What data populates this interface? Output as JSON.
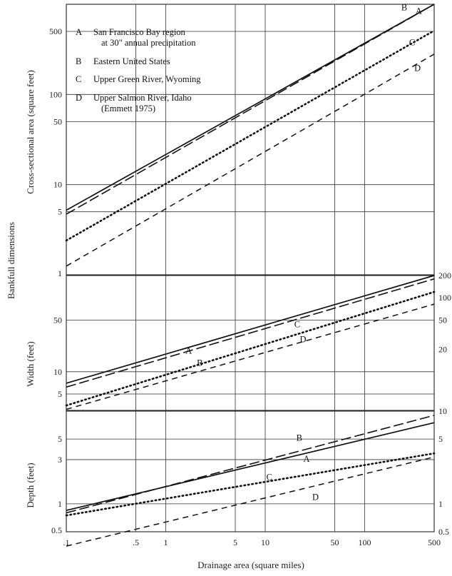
{
  "chart_data": {
    "type": "line",
    "x_scale": "log",
    "xlabel": "Drainage area (square miles)",
    "xlim": [
      0.1,
      500
    ],
    "x_ticks": [
      ".1",
      ".5",
      "1",
      "5",
      "10",
      "50",
      "100",
      "500"
    ],
    "shared_ylabel": "Bankfull dimensions",
    "legend": [
      {
        "key": "A",
        "lines": [
          "San Francisco Bay region",
          "at 30\" annual precipitation"
        ],
        "style": "solid"
      },
      {
        "key": "B",
        "lines": [
          "Eastern United States"
        ],
        "style": "long-dash"
      },
      {
        "key": "C",
        "lines": [
          "Upper Green River, Wyoming"
        ],
        "style": "dotted"
      },
      {
        "key": "D",
        "lines": [
          "Upper Salmon River, Idaho",
          "(Emmett 1975)"
        ],
        "style": "dashed"
      }
    ],
    "panels": [
      {
        "name": "area",
        "ylabel": "Cross-sectional area (square feet)",
        "y_scale": "log",
        "ylim": [
          1,
          1000
        ],
        "y_ticks": [
          "500",
          "100",
          "50",
          "10",
          "5",
          "1"
        ],
        "series": [
          {
            "name": "A",
            "x": [
              0.1,
              500
            ],
            "y": [
              5.2,
              1000
            ]
          },
          {
            "name": "B",
            "x": [
              0.1,
              500
            ],
            "y": [
              4.7,
              1000
            ]
          },
          {
            "name": "C",
            "x": [
              0.1,
              500
            ],
            "y": [
              2.4,
              510
            ]
          },
          {
            "name": "D",
            "x": [
              0.1,
              500
            ],
            "y": [
              1.25,
              280
            ]
          }
        ],
        "curve_labels": [
          {
            "text": "B",
            "x": 250,
            "y": 860
          },
          {
            "text": "A",
            "x": 350,
            "y": 780
          },
          {
            "text": "C",
            "x": 300,
            "y": 350
          },
          {
            "text": "D",
            "x": 340,
            "y": 182
          }
        ]
      },
      {
        "name": "width",
        "ylabel": "Width (feet)",
        "y_scale": "log",
        "ylim": [
          3,
          200
        ],
        "y_ticks_left": [
          "50",
          "10",
          "5"
        ],
        "y_ticks_right": [
          "200",
          "100",
          "50",
          "20"
        ],
        "series": [
          {
            "name": "A",
            "x": [
              0.1,
              500
            ],
            "y": [
              7,
              200
            ]
          },
          {
            "name": "B",
            "x": [
              0.1,
              500
            ],
            "y": [
              6.2,
              180
            ]
          },
          {
            "name": "C",
            "x": [
              0.1,
              500
            ],
            "y": [
              3.5,
              120
            ]
          },
          {
            "name": "D",
            "x": [
              0.1,
              500
            ],
            "y": [
              3.1,
              82
            ]
          }
        ],
        "curve_labels": [
          {
            "text": "A",
            "x": 1.7,
            "y": 17.5
          },
          {
            "text": "B",
            "x": 2.2,
            "y": 12
          },
          {
            "text": "C",
            "x": 21,
            "y": 40
          },
          {
            "text": "D",
            "x": 24,
            "y": 25
          }
        ]
      },
      {
        "name": "depth",
        "ylabel": "Depth (feet)",
        "y_scale": "log",
        "ylim": [
          0.5,
          10
        ],
        "y_ticks_left": [
          "5",
          "3",
          "1",
          "0.5"
        ],
        "y_ticks_right": [
          "10",
          "5",
          "1",
          "0.5"
        ],
        "series": [
          {
            "name": "A",
            "x": [
              0.1,
              500
            ],
            "y": [
              0.85,
              7.5
            ]
          },
          {
            "name": "B",
            "x": [
              0.1,
              500
            ],
            "y": [
              0.8,
              9
            ]
          },
          {
            "name": "C",
            "x": [
              0.1,
              500
            ],
            "y": [
              0.75,
              3.5
            ]
          },
          {
            "name": "D",
            "x": [
              0.1,
              500
            ],
            "y": [
              0.35,
              3.2
            ]
          }
        ],
        "curve_labels": [
          {
            "text": "B",
            "x": 22,
            "y": 4.8
          },
          {
            "text": "A",
            "x": 26,
            "y": 2.85
          },
          {
            "text": "C",
            "x": 11,
            "y": 1.8
          },
          {
            "text": "D",
            "x": 32,
            "y": 1.1
          }
        ]
      }
    ]
  }
}
